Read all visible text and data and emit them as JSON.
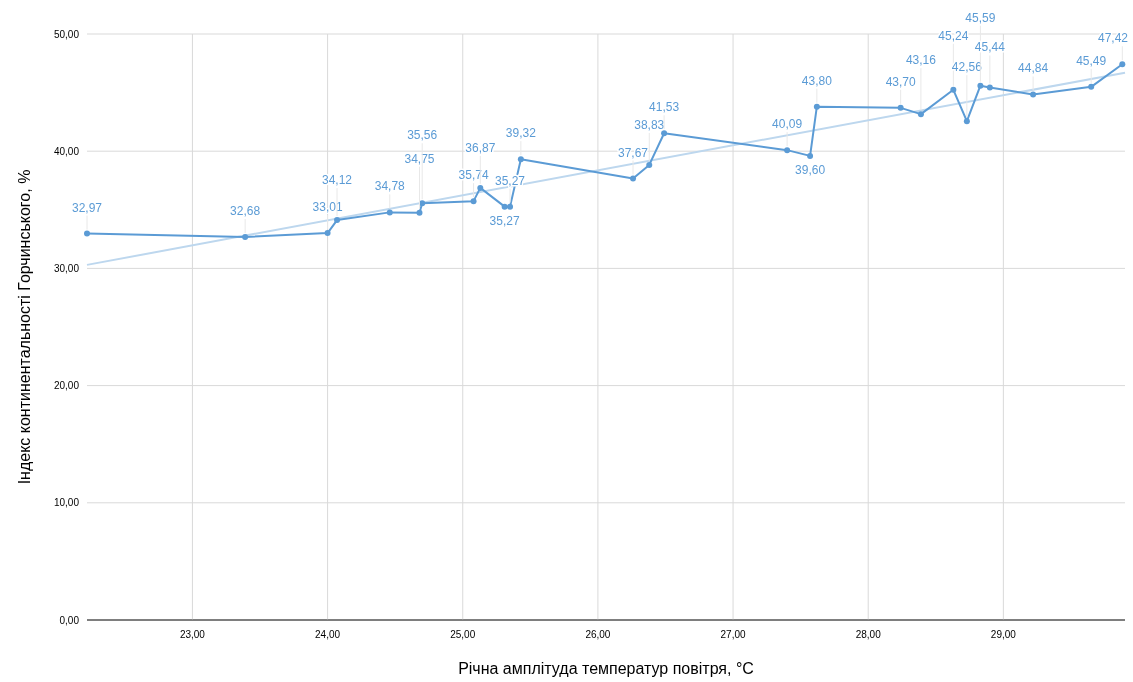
{
  "chart_data": {
    "type": "line",
    "xlabel": "Річна амплітуда температур повітря, °C",
    "ylabel": "Індекс континентальності Горчинського, %",
    "xlim": [
      22.22,
      29.9
    ],
    "ylim": [
      0,
      50
    ],
    "xticks": [
      {
        "value": 23,
        "label": "23,00"
      },
      {
        "value": 24,
        "label": "24,00"
      },
      {
        "value": 25,
        "label": "25,00"
      },
      {
        "value": 26,
        "label": "26,00"
      },
      {
        "value": 27,
        "label": "27,00"
      },
      {
        "value": 28,
        "label": "28,00"
      },
      {
        "value": 29,
        "label": "29,00"
      }
    ],
    "yticks": [
      {
        "value": 0,
        "label": "0,00"
      },
      {
        "value": 10,
        "label": "10,00"
      },
      {
        "value": 20,
        "label": "20,00"
      },
      {
        "value": 30,
        "label": "30,00"
      },
      {
        "value": 40,
        "label": "40,00"
      },
      {
        "value": 50,
        "label": "50,00"
      }
    ],
    "grid": true,
    "marker": "circle",
    "legend": false,
    "series": [
      {
        "color": "#5b9bd5",
        "x": [
          22.22,
          23.39,
          24.0,
          24.07,
          24.46,
          24.68,
          24.7,
          25.08,
          25.13,
          25.31,
          25.35,
          25.43,
          26.26,
          26.38,
          26.49,
          27.4,
          27.57,
          27.62,
          28.24,
          28.39,
          28.63,
          28.73,
          28.83,
          28.9,
          29.22,
          29.65,
          29.88
        ],
        "values": [
          32.97,
          32.68,
          33.01,
          34.12,
          34.78,
          34.75,
          35.56,
          35.74,
          36.87,
          35.27,
          35.27,
          39.32,
          37.67,
          38.83,
          41.53,
          40.09,
          39.6,
          43.8,
          43.7,
          43.16,
          45.24,
          42.56,
          45.59,
          45.44,
          44.84,
          45.49,
          47.42
        ],
        "value_labels": [
          "32,97",
          "32,68",
          "33,01",
          "34,12",
          "34,78",
          "34,75",
          "35,56",
          "35,74",
          "36,87",
          "35,27",
          "35,27",
          "39,32",
          "37,67",
          "38,83",
          "41,53",
          "40,09",
          "39,60",
          "43,80",
          "43,70",
          "43,16",
          "45,24",
          "42,56",
          "45,59",
          "45,44",
          "44,84",
          "45,49",
          "47,42"
        ]
      },
      {
        "color": "#bdd7ee",
        "marker": "none",
        "x": [
          22.22,
          29.9
        ],
        "values": [
          30.3,
          46.7
        ]
      }
    ]
  }
}
